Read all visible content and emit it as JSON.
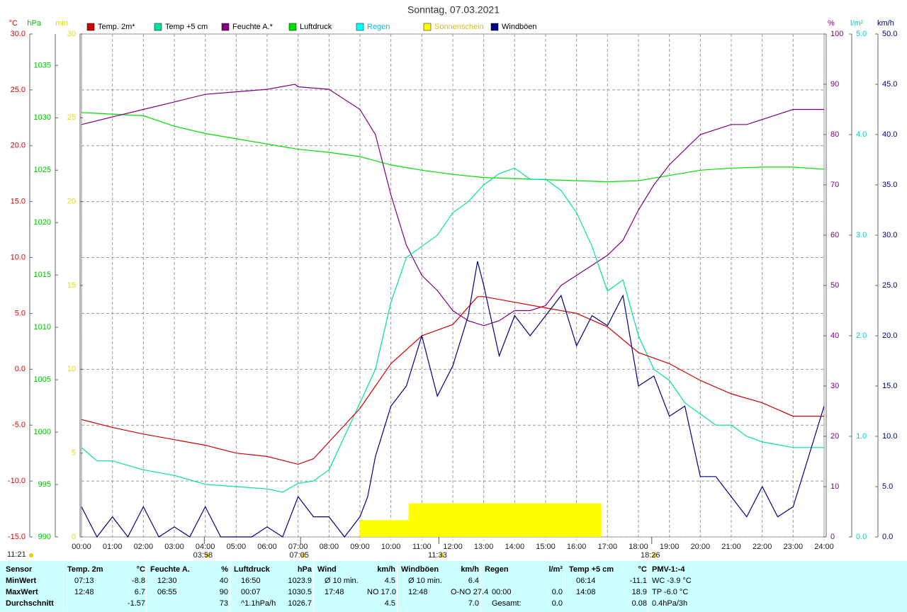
{
  "chart_data": {
    "type": "line",
    "title": "Sonntag, 07.03.2021",
    "grid": true,
    "xlim": [
      0,
      24
    ],
    "xticks": [
      {
        "value": 0,
        "label": "00:00"
      },
      {
        "value": 1,
        "label": "01:00"
      },
      {
        "value": 2,
        "label": "02:00"
      },
      {
        "value": 3,
        "label": "03:00"
      },
      {
        "value": 4,
        "label": "04:00"
      },
      {
        "value": 5,
        "label": "05:00"
      },
      {
        "value": 6,
        "label": "06:00"
      },
      {
        "value": 7,
        "label": "07:00"
      },
      {
        "value": 8,
        "label": "08:00"
      },
      {
        "value": 9,
        "label": "09:00"
      },
      {
        "value": 10,
        "label": "10:00"
      },
      {
        "value": 11,
        "label": "11:00"
      },
      {
        "value": 12,
        "label": "12:00"
      },
      {
        "value": 13,
        "label": "13:00"
      },
      {
        "value": 14,
        "label": "14:00"
      },
      {
        "value": 15,
        "label": "15:00"
      },
      {
        "value": 16,
        "label": "16:00"
      },
      {
        "value": 17,
        "label": "17:00"
      },
      {
        "value": 18,
        "label": "18:00"
      },
      {
        "value": 19,
        "label": "19:00"
      },
      {
        "value": 20,
        "label": "20:00"
      },
      {
        "value": 21,
        "label": "21:00"
      },
      {
        "value": 22,
        "label": "22:00"
      },
      {
        "value": 23,
        "label": "23:00"
      },
      {
        "value": 24,
        "label": "24:00"
      }
    ],
    "axes": [
      {
        "unit": "°C",
        "side": "left",
        "color": "#e00000",
        "lim": [
          -15,
          30
        ],
        "ticks": [
          {
            "value": -15,
            "label": "-15.0"
          },
          {
            "value": -10,
            "label": "-10.0"
          },
          {
            "value": -5,
            "label": "-5.0"
          },
          {
            "value": 0,
            "label": "0.0"
          },
          {
            "value": 5,
            "label": "5.0"
          },
          {
            "value": 10,
            "label": "10.0"
          },
          {
            "value": 15,
            "label": "15.0"
          },
          {
            "value": 20,
            "label": "20.0"
          },
          {
            "value": 25,
            "label": "25.0"
          },
          {
            "value": 30,
            "label": "30.0"
          }
        ]
      },
      {
        "unit": "hPa",
        "side": "left",
        "color": "#00c000",
        "lim": [
          990,
          1038
        ],
        "ticks": [
          990,
          995,
          1000,
          1005,
          1010,
          1015,
          1020,
          1025,
          1030,
          1035
        ]
      },
      {
        "unit": "min",
        "side": "left",
        "color": "#e0e000",
        "lim": [
          0,
          30
        ],
        "ticks": [
          0,
          5,
          10,
          15,
          20,
          25,
          30
        ]
      },
      {
        "unit": "%",
        "side": "right",
        "color": "#800080",
        "lim": [
          0,
          100
        ],
        "ticks": [
          0,
          10,
          20,
          30,
          40,
          50,
          60,
          70,
          80,
          90,
          100
        ]
      },
      {
        "unit": "l/m²",
        "side": "right",
        "color": "#00d0d0",
        "lim": [
          0,
          5
        ],
        "ticks": [
          {
            "value": 0,
            "label": "0.0"
          },
          {
            "value": 1,
            "label": "1.0"
          },
          {
            "value": 2,
            "label": "2.0"
          },
          {
            "value": 3,
            "label": "3.0"
          },
          {
            "value": 4,
            "label": "4.0"
          },
          {
            "value": 5,
            "label": "5.0"
          }
        ]
      },
      {
        "unit": "km/h",
        "side": "right",
        "color": "#000080",
        "lim": [
          0,
          50
        ],
        "ticks": [
          {
            "value": 0,
            "label": "0.0"
          },
          {
            "value": 5,
            "label": "5.0"
          },
          {
            "value": 10,
            "label": "10.0"
          },
          {
            "value": 15,
            "label": "15.0"
          },
          {
            "value": 20,
            "label": "20.0"
          },
          {
            "value": 25,
            "label": "25.0"
          },
          {
            "value": 30,
            "label": "30.0"
          },
          {
            "value": 35,
            "label": "35.0"
          },
          {
            "value": 40,
            "label": "40.0"
          },
          {
            "value": 45,
            "label": "45.0"
          },
          {
            "value": 50,
            "label": "50.0"
          }
        ]
      }
    ],
    "series": [
      {
        "name": "Temp. 2m*",
        "color": "#d00000",
        "axis": 0,
        "x": [
          0,
          1,
          2,
          3,
          4,
          5,
          6,
          7,
          7.5,
          8,
          9,
          10,
          11,
          12,
          12.8,
          13,
          14,
          15,
          16,
          17,
          18,
          19,
          20,
          21,
          22,
          23,
          24
        ],
        "values": [
          -4.5,
          -5.2,
          -5.8,
          -6.3,
          -6.8,
          -7.5,
          -7.8,
          -8.5,
          -8.0,
          -6.5,
          -3.5,
          0.5,
          3.0,
          4.0,
          6.5,
          6.5,
          6.0,
          5.5,
          5.0,
          3.8,
          1.5,
          0.5,
          -1.0,
          -2.2,
          -3.0,
          -4.2,
          -4.2
        ]
      },
      {
        "name": "Temp +5 cm",
        "color": "#00e0a0",
        "axis": 0,
        "x": [
          0,
          0.5,
          1,
          2,
          3,
          4,
          5,
          6,
          6.5,
          7,
          7.5,
          8,
          8.5,
          9,
          9.5,
          10,
          10.5,
          11,
          11.5,
          12,
          12.5,
          13,
          13.5,
          14,
          14.5,
          15,
          15.5,
          16,
          16.5,
          17,
          17.5,
          18,
          18.5,
          19,
          19.5,
          20,
          20.5,
          21,
          21.5,
          22,
          23,
          24
        ],
        "values": [
          -7.0,
          -8.2,
          -8.2,
          -9.0,
          -9.5,
          -10.3,
          -10.5,
          -10.7,
          -11.0,
          -10.2,
          -10.0,
          -9.0,
          -6.0,
          -3.0,
          0,
          6,
          10,
          11,
          12,
          14,
          15,
          16.5,
          17.5,
          18,
          17,
          17,
          16,
          14,
          11,
          7,
          8,
          3,
          0,
          -1,
          -3,
          -4,
          -5,
          -5,
          -6,
          -6.5,
          -7,
          -7
        ]
      },
      {
        "name": "Feuchte A.*",
        "color": "#800080",
        "axis": 3,
        "x": [
          0,
          1,
          2,
          3,
          4,
          5,
          6,
          6.9,
          7,
          8,
          9,
          9.5,
          10,
          10.5,
          11,
          11.5,
          12,
          12.5,
          13,
          13.5,
          14,
          14.5,
          15,
          15.5,
          16,
          16.5,
          17,
          17.5,
          18,
          18.5,
          19,
          19.5,
          20,
          20.5,
          21,
          21.5,
          22,
          22.5,
          23,
          24
        ],
        "values": [
          82,
          83.5,
          85,
          86.5,
          88,
          88.5,
          89,
          90,
          89.5,
          89,
          85,
          80,
          68,
          58,
          52,
          49,
          45,
          43,
          42,
          43,
          45,
          45,
          46,
          50,
          52,
          54,
          56,
          59,
          65,
          70,
          74,
          77,
          80,
          81,
          82,
          82,
          83,
          84,
          85,
          85
        ]
      },
      {
        "name": "Luftdruck",
        "color": "#00e000",
        "axis": 1,
        "x": [
          0,
          2,
          3,
          4,
          5,
          6,
          7,
          8,
          9,
          10,
          11,
          12,
          13,
          14,
          15,
          16,
          17,
          18,
          19,
          20,
          21,
          22,
          23,
          24
        ],
        "values": [
          1030.5,
          1030.2,
          1029.2,
          1028.5,
          1028,
          1027.5,
          1027,
          1026.7,
          1026.3,
          1025.5,
          1025,
          1024.6,
          1024.3,
          1024.2,
          1024.1,
          1024,
          1023.9,
          1024,
          1024.5,
          1025,
          1025.2,
          1025.3,
          1025.3,
          1025.1
        ]
      },
      {
        "name": "Regen",
        "color": "#00ffff",
        "axis": 4,
        "x": [],
        "values": []
      },
      {
        "name": "Sonnenschein",
        "color": "#ffff00",
        "axis": 2,
        "bars": true,
        "x": [
          9.0,
          10.57
        ],
        "x_end": [
          10.57,
          16.8
        ],
        "values": [
          1,
          2
        ]
      },
      {
        "name": "Windböen",
        "color": "#000080",
        "axis": 5,
        "x": [
          0,
          0.5,
          1,
          1.5,
          2,
          2.5,
          3,
          3.5,
          4,
          4.5,
          5,
          5.5,
          6,
          6.5,
          7,
          7.5,
          8,
          8.5,
          9,
          9.25,
          9.5,
          10,
          10.5,
          11,
          11.5,
          12,
          12.5,
          12.8,
          13,
          13.5,
          14,
          14.5,
          15,
          15.5,
          16,
          16.5,
          17,
          17.5,
          18,
          18.5,
          19,
          19.5,
          20,
          20.5,
          21,
          21.5,
          22,
          22.5,
          23,
          23.5,
          24
        ],
        "values": [
          3,
          0,
          2,
          0,
          3,
          0,
          1,
          0,
          3,
          0,
          0,
          0,
          1,
          0,
          4,
          2,
          2,
          0,
          2,
          4,
          8,
          13,
          15,
          20,
          14,
          17,
          22,
          27.4,
          25,
          18,
          22,
          20,
          22,
          24,
          19,
          22,
          21,
          24,
          15,
          16,
          12,
          13,
          6,
          6,
          4,
          2,
          5,
          2,
          3,
          8,
          13
        ]
      }
    ],
    "annotations": [
      {
        "x": 3.97,
        "label": "03:58"
      },
      {
        "x": 7.08,
        "label": "07:05"
      },
      {
        "x": 11.55,
        "label": "11:33"
      },
      {
        "x": 18.43,
        "label": "18:26"
      }
    ],
    "corner_note": "11:21",
    "table": {
      "headers": [
        [
          "Sensor"
        ],
        [
          "Temp. 2m",
          "°C"
        ],
        [
          "Feuchte A.",
          "%"
        ],
        [
          "Luftdruck",
          "hPa"
        ],
        [
          "Wind",
          "km/h"
        ],
        [
          "Windböen",
          "km/h"
        ],
        [
          "Regen",
          "l/m²"
        ],
        [
          "Temp +5 cm",
          "°C"
        ],
        [
          "PMV-1:-4"
        ]
      ],
      "rows": [
        {
          "label": "MinWert",
          "cells": [
            [
              "07:13",
              "-8.8"
            ],
            [
              "12:30",
              "40"
            ],
            [
              "16:50",
              "1023.9"
            ],
            [
              "Ø 10 min.",
              "4.5"
            ],
            [
              "Ø 10 min.",
              "6.4"
            ],
            [
              null,
              null
            ],
            [
              "06:14",
              "-11.1"
            ],
            [
              "WC -3.9 °C"
            ]
          ]
        },
        {
          "label": "MaxWert",
          "cells": [
            [
              "12:48",
              "6.7"
            ],
            [
              "06:55",
              "90"
            ],
            [
              "00:07",
              "1030.5"
            ],
            [
              "17:48",
              "NO 17.0"
            ],
            [
              "12:48",
              "O-NO 27.4"
            ],
            [
              "00:00",
              "0.0"
            ],
            [
              "14:08",
              "18.9"
            ],
            [
              "TP -6.0 °C"
            ]
          ]
        },
        {
          "label": "Durchschnitt",
          "cells": [
            [
              null,
              "-1.57"
            ],
            [
              null,
              "73"
            ],
            [
              "^1.1hPa/h",
              "1026.7"
            ],
            [
              null,
              "4.5"
            ],
            [
              null,
              "7.0"
            ],
            [
              "Gesamt:",
              "0.0"
            ],
            [
              null,
              "0.08"
            ],
            [
              "0.4hPa/3h"
            ]
          ]
        }
      ]
    }
  }
}
